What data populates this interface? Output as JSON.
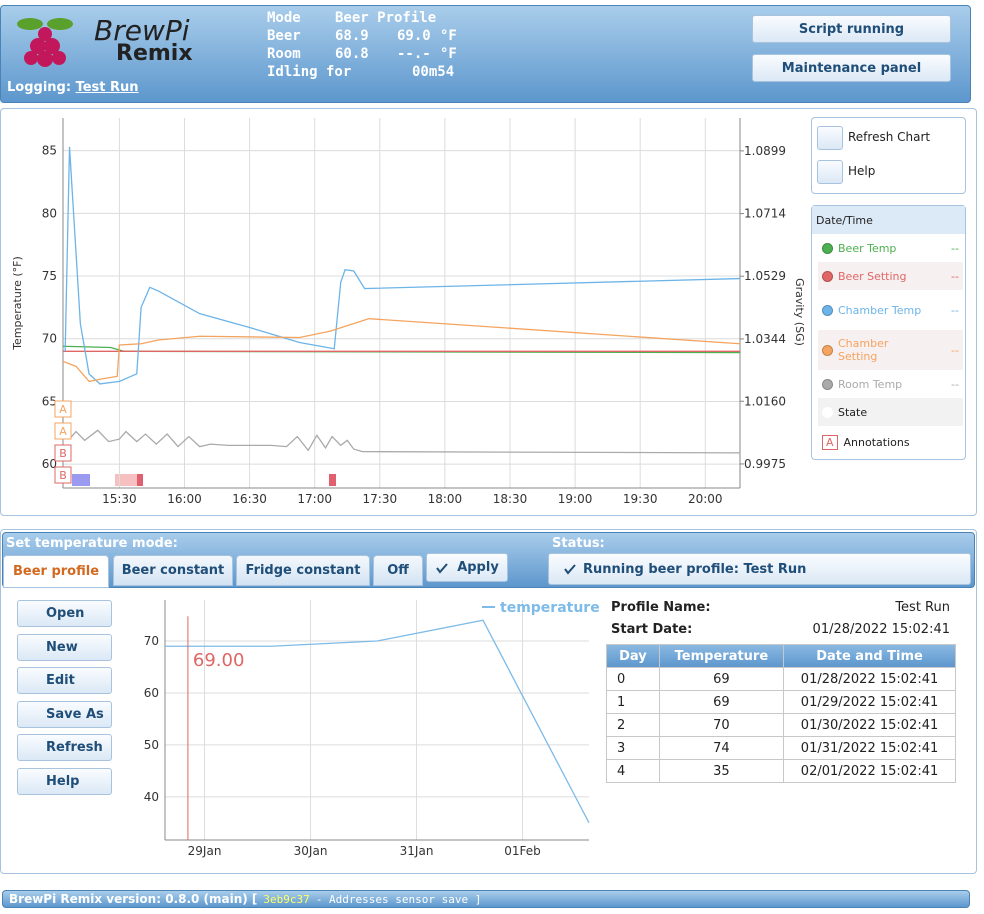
{
  "header": {
    "logo": {
      "line1": "BrewPi",
      "line2": "Remix"
    },
    "logging_label": "Logging:",
    "logging_name": "Test Run",
    "mode": {
      "label": "Mode",
      "value": "Beer Profile"
    },
    "beer": {
      "label": "Beer",
      "temp": "68.9",
      "setting": "69.0",
      "unit": "°F"
    },
    "room": {
      "label": "Room",
      "temp": "60.8",
      "setting": "--.-",
      "unit": "°F"
    },
    "idle": {
      "label": "Idling for",
      "time": "00m54"
    },
    "buttons": [
      "Script running",
      "Maintenance panel"
    ]
  },
  "chart_controls": [
    "Refresh Chart",
    "Help"
  ],
  "legend": {
    "header": "Date/Time",
    "values": [
      "--",
      "--",
      "--",
      "--",
      "--"
    ],
    "state": "State",
    "annotations_icon": "A",
    "annotations": "Annotations"
  },
  "chart_data": [
    {
      "type": "line",
      "y_label": "Temperature (°F)",
      "y2_label": "Gravity (SG)",
      "xlim": [
        "15:04",
        "20:16"
      ],
      "xticks": [
        "15:30",
        "16:00",
        "16:30",
        "17:00",
        "17:30",
        "18:00",
        "18:30",
        "19:00",
        "19:30",
        "20:00"
      ],
      "ylim": [
        58.1,
        87.6
      ],
      "yticks": [
        60,
        65,
        70,
        75,
        80,
        85
      ],
      "y2lim": [
        0.9904,
        1.0996
      ],
      "y2ticks": [
        0.9975,
        {
          "value": 1.016,
          "label": "1.0160"
        },
        1.0344,
        1.0529,
        1.0714,
        1.0899
      ],
      "grid": true,
      "series": [
        {
          "name": "Beer Temp",
          "color": "#4caf50",
          "x": [
            "15:04",
            "15:26",
            "15:32",
            "20:16"
          ],
          "values": [
            69.4,
            69.3,
            69.0,
            68.9
          ]
        },
        {
          "name": "Beer Setting",
          "color": "#e06666",
          "x": [
            "15:04",
            "20:16"
          ],
          "values": [
            69.0,
            69.0
          ]
        },
        {
          "name": "Chamber Temp",
          "color": "#6cb4e8",
          "x": [
            "15:05",
            "15:07",
            "15:12",
            "15:16",
            "15:21",
            "15:30",
            "15:38",
            "15:40",
            "15:44",
            "15:48",
            "16:07",
            "16:30",
            "16:53",
            "17:09",
            "17:12",
            "17:14",
            "17:18",
            "17:23",
            "20:16"
          ],
          "values": [
            69.0,
            85.3,
            71.2,
            67.2,
            66.4,
            66.6,
            67.2,
            72.5,
            74.1,
            73.8,
            72.0,
            70.9,
            69.7,
            69.2,
            74.5,
            75.5,
            75.4,
            74.0,
            74.8
          ]
        },
        {
          "name": "Chamber Setting",
          "color": "#f4a460",
          "x": [
            "15:04",
            "15:10",
            "15:16",
            "15:22",
            "15:29",
            "15:30",
            "15:40",
            "15:48",
            "16:07",
            "16:53",
            "17:07",
            "17:25",
            "20:16"
          ],
          "values": [
            68.2,
            67.8,
            66.6,
            66.8,
            67.0,
            69.5,
            69.6,
            69.9,
            70.2,
            70.1,
            70.6,
            71.6,
            69.6
          ]
        },
        {
          "name": "Room Temp",
          "color": "#aaaaaa",
          "x": [
            "15:04",
            "15:08",
            "15:10",
            "15:14",
            "15:17",
            "15:20",
            "15:25",
            "15:30",
            "15:33",
            "15:38",
            "15:42",
            "15:47",
            "15:52",
            "15:57",
            "16:02",
            "16:07",
            "16:12",
            "16:20",
            "16:40",
            "16:47",
            "16:52",
            "16:57",
            "17:01",
            "17:05",
            "17:08",
            "17:12",
            "17:15",
            "17:18",
            "17:22",
            "20:16"
          ],
          "values": [
            62.8,
            62.2,
            62.6,
            61.9,
            62.3,
            62.7,
            61.8,
            62.0,
            62.6,
            61.8,
            62.4,
            61.6,
            62.4,
            61.4,
            62.2,
            61.4,
            61.6,
            61.5,
            61.5,
            61.4,
            62.2,
            61.1,
            62.3,
            61.3,
            62.2,
            61.5,
            61.9,
            61.2,
            61.0,
            60.9
          ]
        }
      ],
      "annotations": [
        {
          "label": "A",
          "color": "#f4a460"
        },
        {
          "label": "A",
          "color": "#f4a460"
        },
        {
          "label": "B",
          "color": "#e06666"
        },
        {
          "label": "B",
          "color": "#e06666"
        }
      ]
    },
    {
      "type": "line",
      "xlim": [
        "01/28/2022 15:02:41",
        "02/01/2022 15:02:41"
      ],
      "xticks": [
        {
          "value": "01/29/2022 00:00:00",
          "label": "29Jan"
        },
        {
          "value": "01/30/2022 00:00:00",
          "label": "30Jan"
        },
        {
          "value": "01/31/2022 00:00:00",
          "label": "31Jan"
        },
        {
          "value": "02/01/2022 00:00:00",
          "label": "01Feb"
        }
      ],
      "ylim": [
        31.7,
        77.9
      ],
      "yticks": [
        40,
        50,
        60,
        70
      ],
      "grid": true,
      "legend": "top-right",
      "series": [
        {
          "name": "temperature",
          "color": "#7dbbe8",
          "x": [
            "01/28/2022 15:02:41",
            "01/29/2022 15:02:41",
            "01/30/2022 15:02:41",
            "01/31/2022 15:02:41",
            "02/01/2022 15:02:41"
          ],
          "values": [
            69,
            69,
            70,
            74,
            35
          ]
        }
      ],
      "marker": {
        "x": "01/28/2022 20:14:00",
        "value": 69,
        "label": "69.00",
        "color": "#e06666"
      }
    }
  ],
  "controls": {
    "mode_title": "Set temperature mode:",
    "status_title": "Status:",
    "tabs": [
      "Beer profile",
      "Beer constant",
      "Fridge constant",
      "Off"
    ],
    "apply": "Apply",
    "status": "Running beer profile: Test Run",
    "buttons": [
      "Open",
      "New",
      "Edit",
      "Save As",
      "Refresh",
      "Help"
    ]
  },
  "profile": {
    "name_label": "Profile Name:",
    "name": "Test Run",
    "start_label": "Start Date:",
    "start": "01/28/2022 15:02:41",
    "table": {
      "columns": [
        "Day",
        "Temperature",
        "Date and Time"
      ],
      "rows": [
        [
          "0",
          "69",
          "01/28/2022 15:02:41"
        ],
        [
          "1",
          "69",
          "01/29/2022 15:02:41"
        ],
        [
          "2",
          "70",
          "01/30/2022 15:02:41"
        ],
        [
          "3",
          "74",
          "01/31/2022 15:02:41"
        ],
        [
          "4",
          "35",
          "02/01/2022 15:02:41"
        ]
      ]
    }
  },
  "footer": {
    "version": "BrewPi Remix version: 0.8.0 (main) [",
    "commit": "3eb9c37",
    "message": "- Addresses sensor save ]"
  }
}
